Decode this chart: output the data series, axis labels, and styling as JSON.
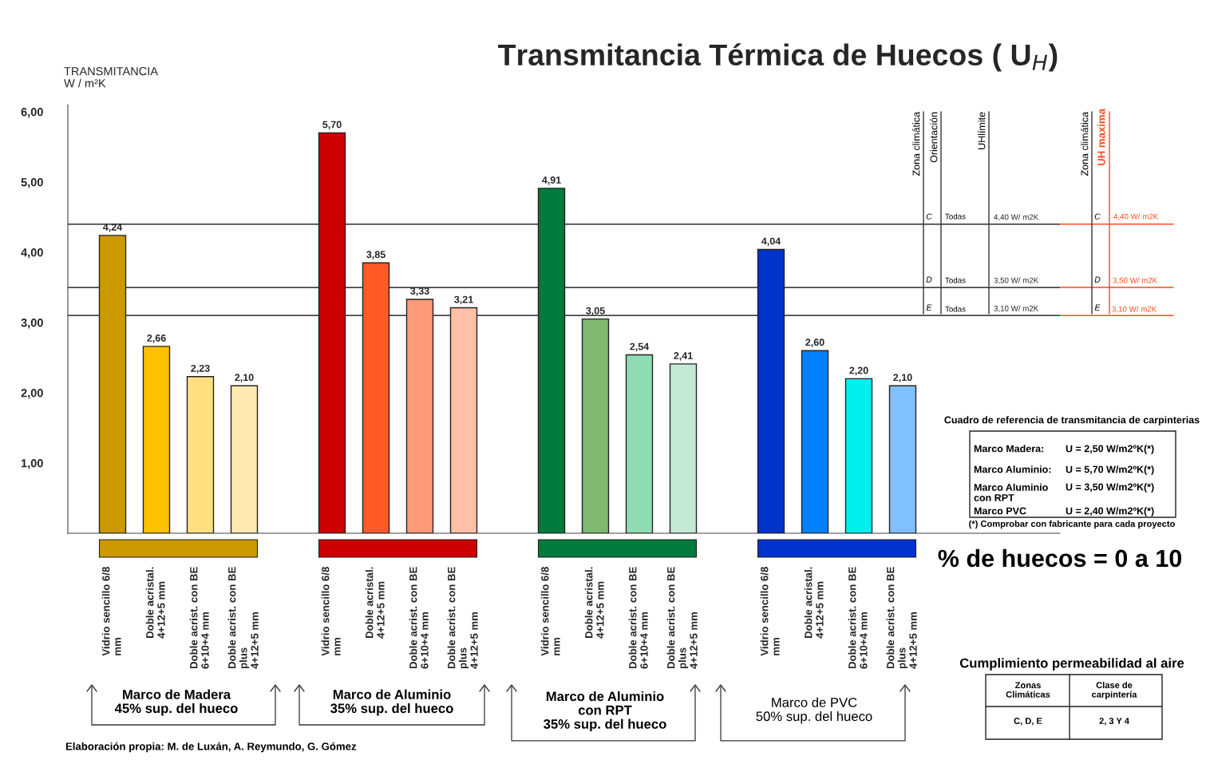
{
  "chart_data": {
    "type": "bar",
    "title": "Transmitancia Térmica de Huecos ( U$_{H}$)",
    "ylabel": "TRANSMITANCIA\nW / m²K",
    "categories": [
      "Vidrio sencillo 6/8\nmm",
      "Doble acristal.\n4+12+5 mm",
      "Doble acrist. con BE\n6+10+4 mm",
      "Doble acrist. con BE\nplus\n4+12+5 mm",
      null,
      "Vidrio sencillo 6/8\nmm",
      "Doble acristal.\n4+12+5 mm",
      "Doble acrist. con BE\n6+10+4 mm",
      "Doble acrist. con BE\nplus\n4+12+5 mm",
      null,
      "Vidrio sencillo 6/8\nmm",
      "Doble acristal.\n4+12+5 mm",
      "Doble acrist. con BE\n6+10+4 mm",
      "Doble acrist. con BE\nplus\n4+12+5 mm",
      null,
      "Vidrio sencillo 6/8\nmm",
      "Doble acristal.\n4+12+5 mm",
      "Doble acrist. con BE\n6+10+4 mm",
      "Doble acrist. con BE\nplus\n4+12+5 mm"
    ],
    "values": [
      4.24,
      2.66,
      2.23,
      2.1,
      null,
      5.7,
      3.85,
      3.33,
      3.21,
      null,
      4.91,
      3.05,
      2.54,
      2.41,
      null,
      4.04,
      2.6,
      2.2,
      2.1
    ],
    "value_labels": [
      "4,24",
      "2,66",
      "2,23",
      "2,10",
      null,
      "5,70",
      "3,85",
      "3,33",
      "3,21",
      null,
      "4,91",
      "3,05",
      "2,54",
      "2,41",
      null,
      "4,04",
      "2,60",
      "2,20",
      "2,10"
    ],
    "colors": [
      "#cc9900",
      "#ffc000",
      "#ffe080",
      "#ffe9b0",
      null,
      "#cc0000",
      "#ff5a28",
      "#ff9a78",
      "#ffbfa8",
      null,
      "#007a3d",
      "#7fb86e",
      "#8fdcb4",
      "#c4ead6",
      null,
      "#0033cc",
      "#0080ff",
      "#00f0f0",
      "#80c0ff"
    ],
    "ylim": [
      0,
      6.1
    ],
    "yticks": [
      {
        "value": 1,
        "label": "1,00"
      },
      {
        "value": 2,
        "label": "2,00"
      },
      {
        "value": 3,
        "label": "3,00"
      },
      {
        "value": 4,
        "label": "4,00"
      },
      {
        "value": 5,
        "label": "5,00"
      },
      {
        "value": 6,
        "label": "6,00"
      }
    ],
    "grid": false,
    "legend": false,
    "ref_lines": [
      {
        "axis": "y",
        "value": 4.4,
        "label": "4,40 W/ m2K",
        "color": "#000000"
      },
      {
        "axis": "y",
        "value": 3.5,
        "label": "3,50 W/ m2K",
        "color": "#000000"
      },
      {
        "axis": "y",
        "value": 3.1,
        "label": "3,10 W/ m2K",
        "color": "#000000"
      }
    ],
    "annotations": [
      "% de huecos = 0 a 10",
      "Cuadro de referencia de transmitancia de carpinterias",
      "Marco Madera:",
      "U = 2,50 W/m2ºK(*)",
      "Marco Aluminio:",
      "U = 5,70 W/m2ºK(*)",
      "Marco Aluminio\ncon RPT",
      "U = 3,50 W/m2ºK(*)",
      "Marco PVC",
      "U = 2,40 W/m2ºK(*)",
      "(*) Comprobar con fabricante para cada proyecto",
      "Cumplimiento permeabilidad al aire",
      "Zonas\nClimáticas",
      "Clase de\ncarpintería",
      "C, D, E",
      "2, 3 Y 4",
      "Elaboración propia: M. de Luxán, A. Reymundo, G. Gómez",
      "Marco de Madera\n45% sup. del hueco",
      "Marco de Aluminio\n35% sup. del hueco",
      "Marco de Aluminio\ncon RPT\n35% sup. del hueco",
      "Marco de PVC\n50% sup. del hueco",
      "Zona climática",
      "Orientación",
      "UHlímite",
      "Zona climática",
      "UH maxima",
      "C",
      "D",
      "E",
      "Todas",
      "Todas",
      "Todas",
      "C",
      "D",
      "E",
      "4,40 W/ m2K",
      "3,50 W/ m2K",
      "3,10 W/ m2K"
    ]
  }
}
